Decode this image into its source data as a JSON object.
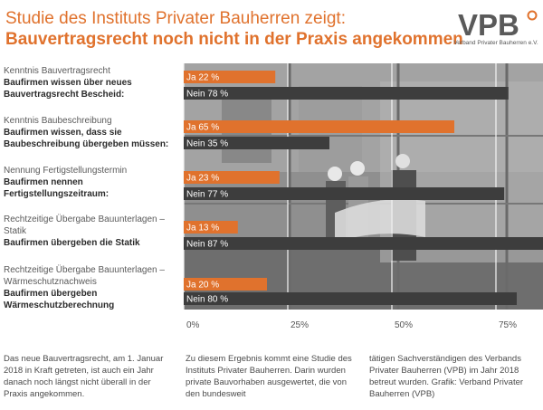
{
  "header": {
    "title_line1": "Studie des Instituts Privater Bauherren zeigt:",
    "title_line2": "Bauvertragsrecht noch nicht in der Praxis angekommen"
  },
  "logo": {
    "mark": "VPB",
    "subtitle": "Verband Privater Bauherren e.V."
  },
  "rows": [
    {
      "question": "Kenntnis Bauvertragsrecht",
      "statement": "Baufirmen wissen über neues Bauvertragsrecht Bescheid:"
    },
    {
      "question": "Kenntnis Baubeschreibung",
      "statement": "Baufirmen wissen, dass sie Baubeschreibung übergeben müssen:"
    },
    {
      "question": "Nennung Fertigstellungstermin",
      "statement": "Baufirmen nennen Fertigstellungszeitraum:"
    },
    {
      "question": "Rechtzeitige Übergabe Bauunterlagen – Statik",
      "statement": "Baufirmen übergeben die Statik"
    },
    {
      "question": "Rechtzeitige Übergabe Bauunterlagen – Wärmeschutznachweis",
      "statement": "Baufirmen übergeben Wärmeschutzberechnung"
    }
  ],
  "chart_data": {
    "type": "bar",
    "orientation": "horizontal",
    "categories": [
      "Kenntnis Bauvertragsrecht",
      "Kenntnis Baubeschreibung",
      "Nennung Fertigstellungstermin",
      "Rechtzeitige Übergabe Bauunterlagen – Statik",
      "Rechtzeitige Übergabe Bauunterlagen – Wärmeschutznachweis"
    ],
    "series": [
      {
        "name": "Ja",
        "values": [
          22,
          65,
          23,
          13,
          20
        ],
        "labels": [
          "Ja 22 %",
          "Ja 65 %",
          "Ja 23 %",
          "Ja 13 %",
          "Ja 20 %"
        ],
        "color": "#e0722d"
      },
      {
        "name": "Nein",
        "values": [
          78,
          35,
          77,
          87,
          80
        ],
        "labels": [
          "Nein 78 %",
          "Nein 35 %",
          "Nein 77 %",
          "Nein 87 %",
          "Nein 80 %"
        ],
        "color": "#3d3d3d"
      }
    ],
    "xlim": [
      0,
      100
    ],
    "xticks": [
      0,
      25,
      50,
      75
    ],
    "xtick_labels": [
      "0%",
      "25%",
      "50%",
      "75%"
    ],
    "grid": true
  },
  "footer": {
    "col1": "Das neue Bauvertragsrecht, am 1. Januar 2018 in Kraft getreten, ist auch ein Jahr danach noch längst nicht überall in der Praxis angekommen.",
    "col2": "Zu diesem Ergebnis kommt eine Studie des Instituts Privater Bauherren. Darin wurden private Bauvorhaben ausgewertet, die von den bundesweit",
    "col3": "tätigen Sachverständigen des Verbands Privater Bauherren (VPB) im Jahr 2018 betreut wurden. Grafik: Verband Privater Bauherren (VPB)"
  },
  "colors": {
    "accent": "#e0722d",
    "dark": "#3d3d3d",
    "photo_bg": "#8f8f8f"
  }
}
